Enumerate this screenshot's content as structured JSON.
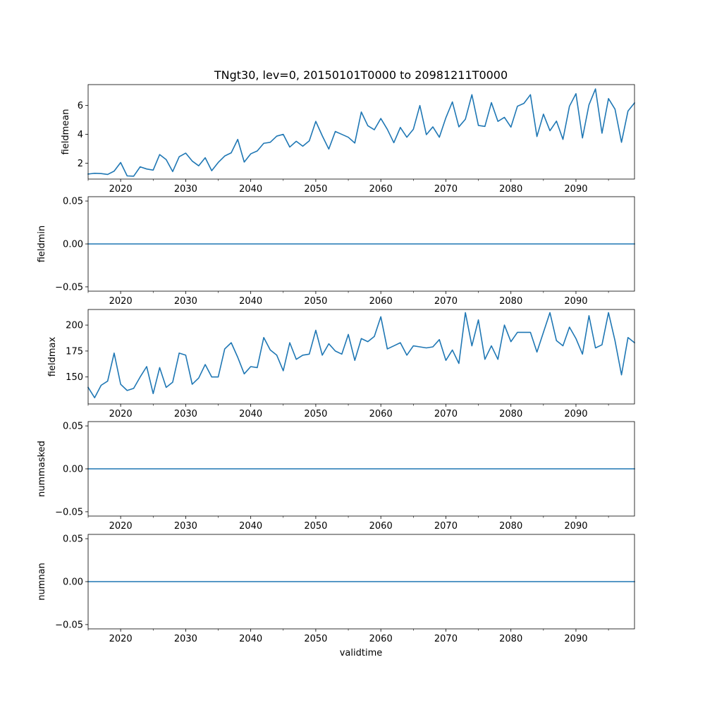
{
  "figure": {
    "title": "TNgt30, lev=0, 20150101T0000 to 20981211T0000",
    "xlabel": "validtime",
    "line_color": "#1f77b4"
  },
  "chart_data": [
    {
      "type": "line",
      "name": "fieldmean",
      "ylabel": "fieldmean",
      "xlim": [
        2015,
        2099
      ],
      "ylim": [
        0.9,
        7.45
      ],
      "yticks": [
        2,
        4,
        6
      ],
      "ytick_labels": [
        "2",
        "4",
        "6"
      ],
      "xticks": [
        2020,
        2030,
        2040,
        2050,
        2060,
        2070,
        2080,
        2090
      ],
      "xtick_labels": [
        "2020",
        "2030",
        "2040",
        "2050",
        "2060",
        "2070",
        "2080",
        "2090"
      ],
      "x": [
        2015,
        2016,
        2017,
        2018,
        2019,
        2020,
        2021,
        2022,
        2023,
        2024,
        2025,
        2026,
        2027,
        2028,
        2029,
        2030,
        2031,
        2032,
        2033,
        2034,
        2035,
        2036,
        2037,
        2038,
        2039,
        2040,
        2041,
        2042,
        2043,
        2044,
        2045,
        2046,
        2047,
        2048,
        2049,
        2050,
        2051,
        2052,
        2053,
        2054,
        2055,
        2056,
        2057,
        2058,
        2059,
        2060,
        2061,
        2062,
        2063,
        2064,
        2065,
        2066,
        2067,
        2068,
        2069,
        2070,
        2071,
        2072,
        2073,
        2074,
        2075,
        2076,
        2077,
        2078,
        2079,
        2080,
        2081,
        2082,
        2083,
        2084,
        2085,
        2086,
        2087,
        2088,
        2089,
        2090,
        2091,
        2092,
        2093,
        2094,
        2095,
        2096,
        2097,
        2098,
        2099
      ],
      "values": [
        1.25,
        1.3,
        1.28,
        1.22,
        1.45,
        2.05,
        1.12,
        1.1,
        1.75,
        1.6,
        1.52,
        2.6,
        2.25,
        1.42,
        2.45,
        2.7,
        2.15,
        1.82,
        2.38,
        1.48,
        2.05,
        2.5,
        2.72,
        3.65,
        2.08,
        2.65,
        2.85,
        3.38,
        3.45,
        3.88,
        4.0,
        3.12,
        3.52,
        3.18,
        3.55,
        4.9,
        3.9,
        2.98,
        4.2,
        4.0,
        3.8,
        3.4,
        5.55,
        4.6,
        4.32,
        5.1,
        4.35,
        3.42,
        4.48,
        3.8,
        4.35,
        6.0,
        3.98,
        4.52,
        3.8,
        5.15,
        6.25,
        4.52,
        5.05,
        6.75,
        4.62,
        4.55,
        6.2,
        4.9,
        5.18,
        4.5,
        5.95,
        6.15,
        6.75,
        3.85,
        5.4,
        4.25,
        4.92,
        3.65,
        5.95,
        6.82,
        3.75,
        6.05,
        7.15,
        4.08,
        6.48,
        5.75,
        3.45,
        5.62,
        6.18
      ]
    },
    {
      "type": "line",
      "name": "fieldmin",
      "ylabel": "fieldmin",
      "xlim": [
        2015,
        2099
      ],
      "ylim": [
        -0.055,
        0.055
      ],
      "yticks": [
        -0.05,
        0.0,
        0.05
      ],
      "ytick_labels": [
        "−0.05",
        "0.00",
        "0.05"
      ],
      "xticks": [
        2020,
        2030,
        2040,
        2050,
        2060,
        2070,
        2080,
        2090
      ],
      "xtick_labels": [
        "2020",
        "2030",
        "2040",
        "2050",
        "2060",
        "2070",
        "2080",
        "2090"
      ],
      "x": [
        2015,
        2099
      ],
      "values": [
        0,
        0
      ]
    },
    {
      "type": "line",
      "name": "fieldmax",
      "ylabel": "fieldmax",
      "xlim": [
        2015,
        2099
      ],
      "ylim": [
        124,
        215
      ],
      "yticks": [
        150,
        175,
        200
      ],
      "ytick_labels": [
        "150",
        "175",
        "200"
      ],
      "xticks": [
        2020,
        2030,
        2040,
        2050,
        2060,
        2070,
        2080,
        2090
      ],
      "xtick_labels": [
        "2020",
        "2030",
        "2040",
        "2050",
        "2060",
        "2070",
        "2080",
        "2090"
      ],
      "x": [
        2015,
        2016,
        2017,
        2018,
        2019,
        2020,
        2021,
        2022,
        2023,
        2024,
        2025,
        2026,
        2027,
        2028,
        2029,
        2030,
        2031,
        2032,
        2033,
        2034,
        2035,
        2036,
        2037,
        2038,
        2039,
        2040,
        2041,
        2042,
        2043,
        2044,
        2045,
        2046,
        2047,
        2048,
        2049,
        2050,
        2051,
        2052,
        2053,
        2054,
        2055,
        2056,
        2057,
        2058,
        2059,
        2060,
        2061,
        2062,
        2063,
        2064,
        2065,
        2066,
        2067,
        2068,
        2069,
        2070,
        2071,
        2072,
        2073,
        2074,
        2075,
        2076,
        2077,
        2078,
        2079,
        2080,
        2081,
        2082,
        2083,
        2084,
        2085,
        2086,
        2087,
        2088,
        2089,
        2090,
        2091,
        2092,
        2093,
        2094,
        2095,
        2096,
        2097,
        2098,
        2099
      ],
      "values": [
        140,
        130,
        142,
        146,
        173,
        143,
        137,
        139,
        150,
        160,
        134,
        159,
        140,
        145,
        173,
        171,
        143,
        149,
        162,
        150,
        150,
        177,
        183,
        169,
        153,
        160,
        159,
        188,
        176,
        171,
        156,
        183,
        167,
        171,
        172,
        195,
        171,
        182,
        175,
        172,
        191,
        166,
        187,
        184,
        189,
        208,
        177,
        180,
        183,
        171,
        180,
        179,
        178,
        179,
        186,
        166,
        176,
        163,
        212,
        180,
        205,
        167,
        180,
        167,
        200,
        184,
        193,
        193,
        193,
        174,
        193,
        212,
        185,
        180,
        198,
        187,
        172,
        209,
        178,
        181,
        212,
        185,
        152,
        188,
        183
      ]
    },
    {
      "type": "line",
      "name": "nummasked",
      "ylabel": "nummasked",
      "xlim": [
        2015,
        2099
      ],
      "ylim": [
        -0.055,
        0.055
      ],
      "yticks": [
        -0.05,
        0.0,
        0.05
      ],
      "ytick_labels": [
        "−0.05",
        "0.00",
        "0.05"
      ],
      "xticks": [
        2020,
        2030,
        2040,
        2050,
        2060,
        2070,
        2080,
        2090
      ],
      "xtick_labels": [
        "2020",
        "2030",
        "2040",
        "2050",
        "2060",
        "2070",
        "2080",
        "2090"
      ],
      "x": [
        2015,
        2099
      ],
      "values": [
        0,
        0
      ]
    },
    {
      "type": "line",
      "name": "numnan",
      "ylabel": "numnan",
      "xlim": [
        2015,
        2099
      ],
      "ylim": [
        -0.055,
        0.055
      ],
      "yticks": [
        -0.05,
        0.0,
        0.05
      ],
      "ytick_labels": [
        "−0.05",
        "0.00",
        "0.05"
      ],
      "xticks": [
        2020,
        2030,
        2040,
        2050,
        2060,
        2070,
        2080,
        2090
      ],
      "xtick_labels": [
        "2020",
        "2030",
        "2040",
        "2050",
        "2060",
        "2070",
        "2080",
        "2090"
      ],
      "x": [
        2015,
        2099
      ],
      "values": [
        0,
        0
      ]
    }
  ]
}
